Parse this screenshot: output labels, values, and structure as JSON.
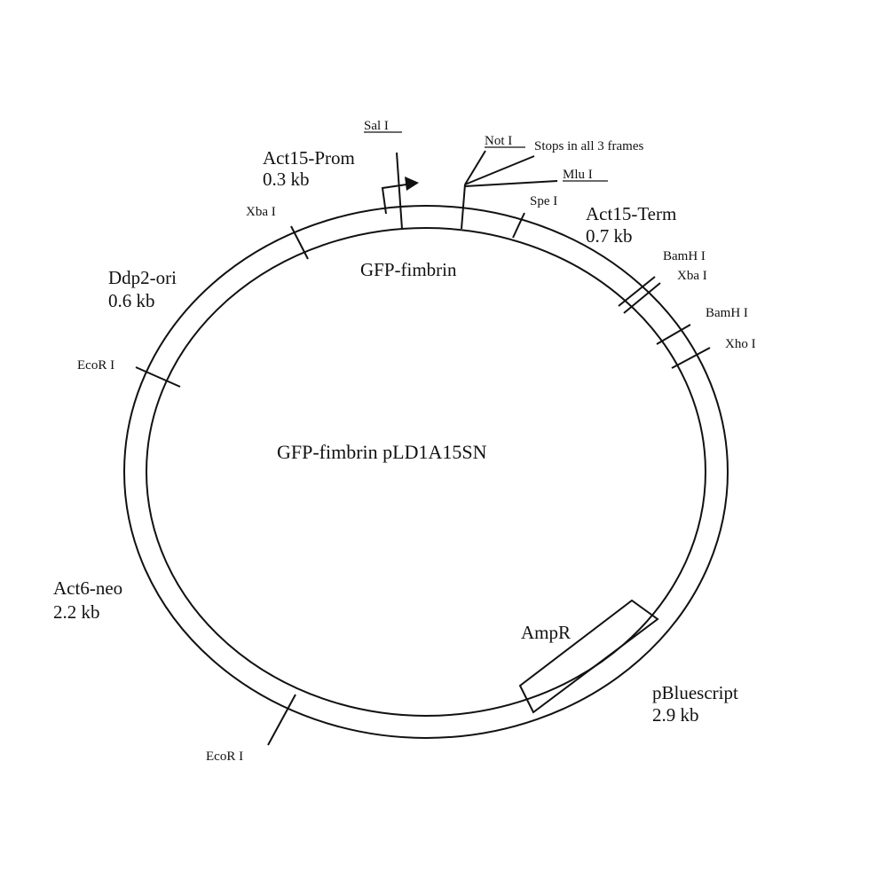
{
  "plasmid_name": "GFP-fimbrin pLD1A15SN",
  "segments": {
    "act15_prom": {
      "name": "Act15-Prom",
      "size": "0.3 kb"
    },
    "gfp_fimbrin": {
      "name": "GFP-fimbrin"
    },
    "act15_term": {
      "name": "Act15-Term",
      "size": "0.7 kb"
    },
    "ddp2_ori": {
      "name": "Ddp2-ori",
      "size": "0.6 kb"
    },
    "act6_neo": {
      "name": "Act6-neo",
      "size": "2.2 kb"
    },
    "pbluescript": {
      "name": "pBluescript",
      "size": "2.9 kb"
    },
    "ampr": {
      "name": "AmpR"
    }
  },
  "sites": {
    "sal_i": "Sal I",
    "not_i": "Not I",
    "stops": "Stops in all 3 frames",
    "mlu_i": "Mlu I",
    "spe_i": "Spe I",
    "xba_i_left": "Xba I",
    "bamh_i_1": "BamH I",
    "xba_i_right": "Xba I",
    "bamh_i_2": "BamH I",
    "xho_i": "Xho I",
    "ecor_i_left": "EcoR I",
    "ecor_i_bottom": "EcoR I"
  }
}
